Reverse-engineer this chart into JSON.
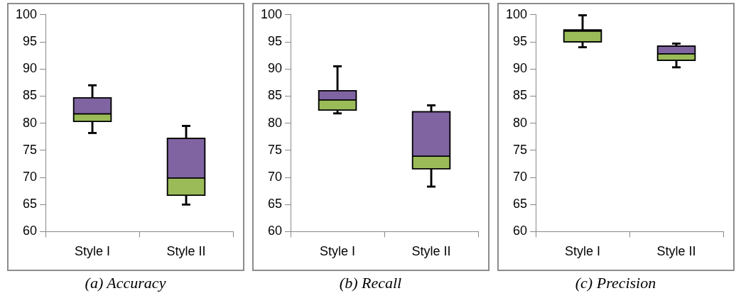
{
  "chart_data": [
    {
      "type": "box",
      "title": "(a) Accuracy",
      "categories": [
        "Style I",
        "Style II"
      ],
      "ylim": [
        60,
        100
      ],
      "yticks": [
        60,
        65,
        70,
        75,
        80,
        85,
        90,
        95,
        100
      ],
      "grid": false,
      "series": [
        {
          "color": "#9bbb59",
          "boxes": [
            {
              "low": 78.2,
              "q1": 80.3,
              "median": 81.7,
              "q3": 84.7,
              "high": 87
            },
            {
              "low": 65,
              "q1": 66.7,
              "median": 69.9,
              "q3": 77.2,
              "high": 79.5
            }
          ]
        },
        {
          "color": "#8064a2",
          "boxes": [
            {
              "low": 78.2,
              "q1": 80.3,
              "median": 81.7,
              "q3": 84.7,
              "high": 87
            },
            {
              "low": 65,
              "q1": 66.7,
              "median": 69.9,
              "q3": 77.2,
              "high": 79.5
            }
          ]
        }
      ]
    },
    {
      "type": "box",
      "title": "(b) Recall",
      "categories": [
        "Style I",
        "Style II"
      ],
      "ylim": [
        60,
        100
      ],
      "yticks": [
        60,
        65,
        70,
        75,
        80,
        85,
        90,
        95,
        100
      ],
      "grid": false,
      "series": [
        {
          "color": "#9bbb59",
          "boxes": [
            {
              "low": 81.8,
              "q1": 82.4,
              "median": 84.3,
              "q3": 86,
              "high": 90.5
            },
            {
              "low": 68.3,
              "q1": 71.6,
              "median": 73.9,
              "q3": 82.1,
              "high": 83.3
            }
          ]
        },
        {
          "color": "#8064a2",
          "boxes": [
            {
              "low": 81.8,
              "q1": 82.4,
              "median": 84.3,
              "q3": 86,
              "high": 90.5
            },
            {
              "low": 68.3,
              "q1": 71.6,
              "median": 73.9,
              "q3": 82.1,
              "high": 83.3
            }
          ]
        }
      ]
    },
    {
      "type": "box",
      "title": "(c) Precision",
      "categories": [
        "Style I",
        "Style II"
      ],
      "ylim": [
        60,
        100
      ],
      "yticks": [
        60,
        65,
        70,
        75,
        80,
        85,
        90,
        95,
        100
      ],
      "grid": false,
      "series": [
        {
          "color": "#9bbb59",
          "boxes": [
            {
              "low": 94,
              "q1": 95,
              "median": 97,
              "q3": 97.2,
              "high": 99.9
            },
            {
              "low": 90.3,
              "q1": 91.6,
              "median": 92.8,
              "q3": 94.2,
              "high": 94.7
            }
          ]
        },
        {
          "color": "#8064a2",
          "boxes": [
            {
              "low": 94,
              "q1": 95,
              "median": 97,
              "q3": 97.2,
              "high": 99.9
            },
            {
              "low": 90.3,
              "q1": 91.6,
              "median": 92.8,
              "q3": 94.2,
              "high": 94.7
            }
          ]
        }
      ]
    }
  ]
}
